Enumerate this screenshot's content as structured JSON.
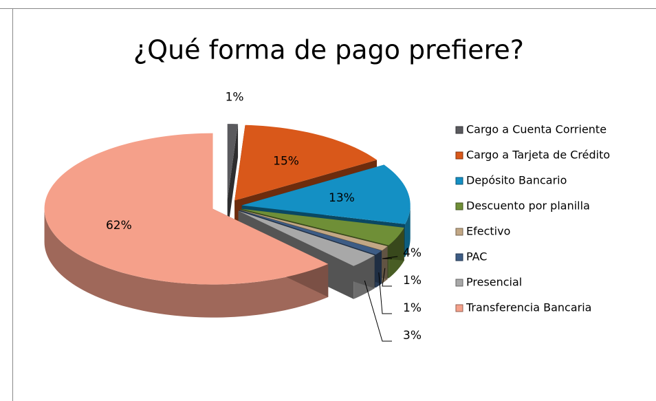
{
  "chart_data": {
    "type": "pie",
    "title": "¿Qué forma de pago prefiere?",
    "series": [
      {
        "categories": [
          "Cargo a Cuenta Corriente",
          "Cargo a Tarjeta de Crédito",
          "Depósito Bancario",
          "Descuento por planilla",
          "Efectivo",
          "PAC",
          "Presencial",
          "Transferencia Bancaria"
        ],
        "values": [
          1,
          15,
          13,
          4,
          1,
          1,
          3,
          62
        ],
        "value_labels": [
          "1%",
          "15%",
          "13%",
          "4%",
          "1%",
          "1%",
          "3%",
          "62%"
        ],
        "colors": [
          "#5a5a5e",
          "#d9581a",
          "#1490c4",
          "#6f8f37",
          "#c2a785",
          "#3d5c85",
          "#a8a8a8",
          "#f5a08a"
        ]
      }
    ],
    "legend": "right"
  }
}
